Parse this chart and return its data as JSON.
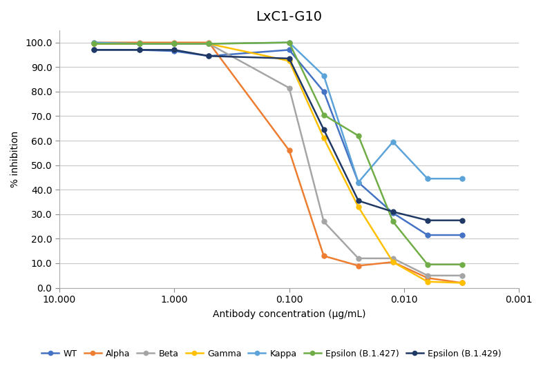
{
  "title": "LxC1-G10",
  "xlabel": "Antibody concentration (μg/mL)",
  "ylabel": "% inhibition",
  "xlim_left": 10.0,
  "xlim_right": 0.001,
  "ylim": [
    0.0,
    105.0
  ],
  "yticks": [
    0.0,
    10.0,
    20.0,
    30.0,
    40.0,
    50.0,
    60.0,
    70.0,
    80.0,
    90.0,
    100.0
  ],
  "xtick_positions": [
    10.0,
    1.0,
    0.1,
    0.01,
    0.001
  ],
  "xtick_labels": [
    "10.000",
    "1.000",
    "0.100",
    "0.010",
    "0.001"
  ],
  "series": [
    {
      "label": "WT",
      "color": "#4472C4",
      "marker": "o",
      "x": [
        5.0,
        2.0,
        1.0,
        0.5,
        0.1,
        0.05,
        0.025,
        0.0125,
        0.00625,
        0.003125
      ],
      "y": [
        97.0,
        97.0,
        96.5,
        94.5,
        97.0,
        80.0,
        43.0,
        30.5,
        21.5,
        21.5
      ]
    },
    {
      "label": "Alpha",
      "color": "#ED7D31",
      "marker": "o",
      "x": [
        5.0,
        2.0,
        1.0,
        0.5,
        0.1,
        0.05,
        0.025,
        0.0125,
        0.00625,
        0.003125
      ],
      "y": [
        100.0,
        100.0,
        100.0,
        100.0,
        56.0,
        13.0,
        9.0,
        10.5,
        4.0,
        2.0
      ]
    },
    {
      "label": "Beta",
      "color": "#A5A5A5",
      "marker": "o",
      "x": [
        5.0,
        2.0,
        1.0,
        0.5,
        0.1,
        0.05,
        0.025,
        0.0125,
        0.00625,
        0.003125
      ],
      "y": [
        99.5,
        99.5,
        99.5,
        99.5,
        81.5,
        27.0,
        12.0,
        12.0,
        5.0,
        5.0
      ]
    },
    {
      "label": "Gamma",
      "color": "#FFC000",
      "marker": "o",
      "x": [
        5.0,
        2.0,
        1.0,
        0.5,
        0.1,
        0.05,
        0.025,
        0.0125,
        0.00625,
        0.003125
      ],
      "y": [
        99.5,
        99.5,
        99.5,
        99.5,
        92.5,
        61.0,
        33.0,
        10.5,
        2.5,
        2.0
      ]
    },
    {
      "label": "Kappa",
      "color": "#5BA3D9",
      "marker": "o",
      "x": [
        5.0,
        2.0,
        1.0,
        0.5,
        0.1,
        0.05,
        0.025,
        0.0125,
        0.00625,
        0.003125
      ],
      "y": [
        100.0,
        99.5,
        99.5,
        99.5,
        100.0,
        86.5,
        43.0,
        59.5,
        44.5,
        44.5
      ]
    },
    {
      "label": "Epsilon (B.1.427)",
      "color": "#70AD47",
      "marker": "o",
      "x": [
        5.0,
        2.0,
        1.0,
        0.5,
        0.1,
        0.05,
        0.025,
        0.0125,
        0.00625,
        0.003125
      ],
      "y": [
        99.5,
        99.5,
        99.5,
        99.5,
        100.0,
        70.5,
        62.0,
        27.0,
        9.5,
        9.5
      ]
    },
    {
      "label": "Epsilon (B.1.429)",
      "color": "#1F3864",
      "marker": "o",
      "x": [
        5.0,
        2.0,
        1.0,
        0.5,
        0.1,
        0.05,
        0.025,
        0.0125,
        0.00625,
        0.003125
      ],
      "y": [
        97.0,
        97.0,
        97.0,
        94.5,
        93.5,
        64.5,
        35.5,
        31.0,
        27.5,
        27.5
      ]
    }
  ],
  "background_color": "#FFFFFF",
  "grid_color": "#C8C8C8",
  "figsize": [
    7.86,
    5.31
  ],
  "dpi": 100
}
